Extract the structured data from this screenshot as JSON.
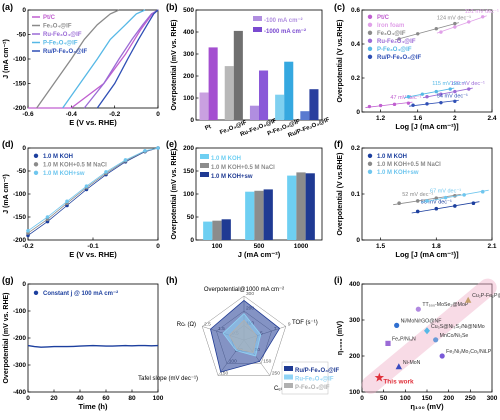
{
  "figure": {
    "panel_letters": [
      "(a)",
      "(b)",
      "(c)",
      "(d)",
      "(e)",
      "(f)",
      "(g)",
      "(h)",
      "(i)"
    ]
  },
  "chart_data": [
    {
      "id": "a",
      "type": "line",
      "xlabel": "E (V vs. RHE)",
      "ylabel": "J (mA cm⁻²)",
      "xlim": [
        -0.6,
        0.0
      ],
      "ylim": [
        -200,
        0
      ],
      "xticks": [
        -0.6,
        -0.4,
        -0.2,
        0.0
      ],
      "yticks": [
        -200,
        -150,
        -100,
        -50,
        0
      ],
      "legend": "top-left",
      "series": [
        {
          "name": "Pt/C",
          "color": "#c05fd0",
          "x": [
            -0.6,
            -0.4,
            -0.25,
            -0.15,
            -0.08,
            -0.03,
            0.0
          ],
          "y": [
            -200,
            -200,
            -150,
            -90,
            -40,
            -10,
            0
          ]
        },
        {
          "name": "Fe₃O₄@IF",
          "color": "#8a8a8a",
          "x": [
            -0.56,
            -0.48,
            -0.4,
            -0.34,
            -0.28,
            -0.22,
            -0.18
          ],
          "y": [
            -200,
            -150,
            -100,
            -60,
            -30,
            -8,
            0
          ]
        },
        {
          "name": "Ru-Fe₃O₄@IF",
          "color": "#9b6bd6",
          "x": [
            -0.34,
            -0.25,
            -0.18,
            -0.12,
            -0.07,
            -0.03,
            0.0
          ],
          "y": [
            -200,
            -150,
            -100,
            -60,
            -30,
            -8,
            0
          ]
        },
        {
          "name": "P-Fe₃O₄@IF",
          "color": "#56b8e6",
          "x": [
            -0.44,
            -0.36,
            -0.28,
            -0.22,
            -0.15,
            -0.1,
            -0.06
          ],
          "y": [
            -200,
            -150,
            -100,
            -60,
            -30,
            -8,
            0
          ]
        },
        {
          "name": "Ru/P-Fe₃O₄@IF",
          "color": "#2f4fb5",
          "x": [
            -0.28,
            -0.2,
            -0.14,
            -0.09,
            -0.05,
            -0.02,
            0.0
          ],
          "y": [
            -200,
            -150,
            -100,
            -60,
            -30,
            -8,
            0
          ]
        }
      ]
    },
    {
      "id": "b",
      "type": "bar",
      "ylabel": "Overpotential (mV vs. RHE)",
      "ylim": [
        0,
        500
      ],
      "yticks": [
        0,
        100,
        200,
        300,
        400,
        500
      ],
      "categories": [
        "Pt",
        "Fe₃O₄@IF",
        "Ru-Fe₃O₄@IF",
        "P-Fe₃O₄@IF",
        "Ru/P-Fe₃O₄@IF"
      ],
      "legend": "top-right",
      "series": [
        {
          "name": "-100 mA cm⁻²",
          "values": [
            125,
            245,
            65,
            115,
            40
          ]
        },
        {
          "name": "-1000 mA cm⁻²",
          "values": [
            330,
            405,
            225,
            265,
            140
          ]
        }
      ],
      "colors_100": [
        "#c9a0e0",
        "#b8b8b8",
        "#b08ee0",
        "#7fd0f0",
        "#5a7ad0"
      ],
      "colors_1000": [
        "#a44fd0",
        "#707070",
        "#8a58d8",
        "#35a8e0",
        "#2a3f9e"
      ]
    },
    {
      "id": "c",
      "type": "scatter",
      "xlabel": "Log [J (mA cm⁻²)]",
      "ylabel": "Overpotential (V vs.RHE)",
      "xlim": [
        1.0,
        2.4
      ],
      "ylim": [
        0.0,
        0.6
      ],
      "xticks": [
        1.2,
        1.6,
        2.0,
        2.4
      ],
      "yticks": [
        0.0,
        0.2,
        0.4,
        0.6
      ],
      "legend": "top-left",
      "series": [
        {
          "name": "Pt/C",
          "color": "#c05fd0",
          "x": [
            1.08,
            1.2,
            1.35,
            1.5
          ],
          "y": [
            0.032,
            0.038,
            0.045,
            0.052
          ],
          "annotation": "47 mV dec⁻¹"
        },
        {
          "name": "Iron foam",
          "color": "#e0a0e8",
          "x": [
            1.85,
            2.0,
            2.15,
            2.3
          ],
          "y": [
            0.47,
            0.5,
            0.53,
            0.56
          ],
          "annotation": "151 mV dec⁻¹"
        },
        {
          "name": "Fe₃O₄@IF",
          "color": "#8a8a8a",
          "x": [
            1.4,
            1.6,
            1.8,
            2.0
          ],
          "y": [
            0.43,
            0.46,
            0.49,
            0.52
          ],
          "annotation": "124 mV dec⁻¹"
        },
        {
          "name": "Ru-Fe₃O₄@IF",
          "color": "#9b6bd6",
          "x": [
            1.7,
            1.85,
            2.0,
            2.15
          ],
          "y": [
            0.09,
            0.105,
            0.12,
            0.135
          ],
          "annotation": "120 mV dec⁻¹"
        },
        {
          "name": "P-Fe₃O₄@IF",
          "color": "#56b8e6",
          "x": [
            1.5,
            1.65,
            1.8,
            1.95
          ],
          "y": [
            0.09,
            0.105,
            0.12,
            0.135
          ],
          "annotation": "115 mV dec⁻¹"
        },
        {
          "name": "Ru/P-Fe₃O₄@IF",
          "color": "#2f4fb5",
          "x": [
            1.55,
            1.7,
            1.85,
            2.0
          ],
          "y": [
            0.04,
            0.048,
            0.055,
            0.063
          ],
          "annotation": "54 mV dec⁻¹"
        }
      ]
    },
    {
      "id": "d",
      "type": "line",
      "xlabel": "E (V vs. RHE)",
      "ylabel": "J (mA cm⁻²)",
      "xlim": [
        -0.2,
        0.0
      ],
      "ylim": [
        -200,
        0
      ],
      "xticks": [
        -0.2,
        -0.1,
        0.0
      ],
      "yticks": [
        -200,
        -150,
        -100,
        -50,
        0
      ],
      "legend": "top-left",
      "series": [
        {
          "name": "1.0 M KOH",
          "color": "#1c3f9e",
          "x": [
            -0.2,
            -0.17,
            -0.14,
            -0.11,
            -0.08,
            -0.05,
            -0.02,
            0.0
          ],
          "y": [
            -190,
            -160,
            -125,
            -90,
            -58,
            -30,
            -8,
            0
          ]
        },
        {
          "name": "1.0 M KOH+0.5 M NaCl",
          "color": "#8a8a8a",
          "x": [
            -0.2,
            -0.17,
            -0.14,
            -0.11,
            -0.08,
            -0.05,
            -0.02,
            0.0
          ],
          "y": [
            -185,
            -155,
            -120,
            -86,
            -55,
            -28,
            -7,
            0
          ]
        },
        {
          "name": "1.0 M KOH+sw",
          "color": "#6fc6ee",
          "x": [
            -0.2,
            -0.17,
            -0.14,
            -0.11,
            -0.08,
            -0.05,
            -0.02,
            0.0
          ],
          "y": [
            -180,
            -150,
            -116,
            -83,
            -52,
            -26,
            -6,
            0
          ]
        }
      ]
    },
    {
      "id": "e",
      "type": "bar",
      "xlabel": "J (mA cm⁻²)",
      "ylabel": "Overpotential (mV vs. RHE)",
      "ylim": [
        0,
        200
      ],
      "yticks": [
        0,
        50,
        100,
        150,
        200
      ],
      "categories": [
        "100",
        "500",
        "1000"
      ],
      "legend": "top-left",
      "series": [
        {
          "name": "1.0 M KOH",
          "color": "#6ecff2",
          "values": [
            40,
            105,
            140
          ]
        },
        {
          "name": "1.0 M KOH+0.5 M NaCl",
          "color": "#8c8c8c",
          "values": [
            42,
            107,
            147
          ]
        },
        {
          "name": "1.0 M KOH+sw",
          "color": "#1f3a93",
          "values": [
            45,
            110,
            145
          ]
        }
      ]
    },
    {
      "id": "f",
      "type": "scatter",
      "xlabel": "Log [J (mA cm⁻²)]",
      "ylabel": "Overpotential (V vs.RHE)",
      "xlim": [
        1.4,
        2.1
      ],
      "ylim": [
        0.0,
        0.2
      ],
      "xticks": [
        1.5,
        1.8,
        2.1
      ],
      "yticks": [
        0.0,
        0.1,
        0.2
      ],
      "legend": "top-left",
      "series": [
        {
          "name": "1.0 M KOH",
          "color": "#1c3f9e",
          "x": [
            1.7,
            1.8,
            1.9,
            2.0
          ],
          "y": [
            0.062,
            0.068,
            0.074,
            0.08
          ],
          "annotation": "56 mV dec⁻¹"
        },
        {
          "name": "1.0 M KOH+0.5 M NaCl",
          "color": "#8a8a8a",
          "x": [
            1.6,
            1.7,
            1.8,
            1.9
          ],
          "y": [
            0.08,
            0.085,
            0.091,
            0.096
          ],
          "annotation": "52 mV dec⁻¹"
        },
        {
          "name": "1.0 M KOH+sw",
          "color": "#6fc6ee",
          "x": [
            1.75,
            1.85,
            1.95,
            2.05
          ],
          "y": [
            0.085,
            0.092,
            0.098,
            0.105
          ],
          "annotation": "67 mV dec⁻¹"
        }
      ]
    },
    {
      "id": "g",
      "type": "line",
      "xlabel": "Time (h)",
      "ylabel": "Overpotential (mV vs. RHE)",
      "xlim": [
        0,
        100
      ],
      "ylim": [
        -400,
        0
      ],
      "xticks": [
        0,
        20,
        40,
        60,
        80,
        100
      ],
      "yticks": [
        -400,
        -300,
        -200,
        -100,
        0
      ],
      "legend": "top-left",
      "series": [
        {
          "name": "Constant j @ 100 mA cm⁻²",
          "color": "#1c3f9e",
          "x": [
            0,
            5,
            10,
            15,
            20,
            25,
            30,
            35,
            40,
            45,
            50,
            55,
            60,
            65,
            70,
            75,
            80,
            85,
            90,
            95,
            100
          ],
          "y": [
            -228,
            -232,
            -234,
            -233,
            -232,
            -232,
            -232,
            -231,
            -230,
            -229,
            -228,
            -229,
            -230,
            -230,
            -229,
            -228,
            -229,
            -228,
            -228,
            -229,
            -228
          ]
        }
      ]
    },
    {
      "id": "h",
      "type": "radar",
      "axes": [
        {
          "label": "Overpotential@1000 mA cm⁻²",
          "ticks": [
            "100",
            "200",
            "300"
          ]
        },
        {
          "label": "TOF (s⁻¹)",
          "ticks": [
            "5",
            "7",
            "9"
          ]
        },
        {
          "label": "Cₑₗ (mF cm⁻²)",
          "ticks": [
            "50",
            "150",
            "250"
          ]
        },
        {
          "label": "Tafel slope (mV dec⁻¹)",
          "ticks": [
            "50",
            "100",
            "150"
          ]
        },
        {
          "label": "Rᴄₜ (Ω)",
          "ticks": [
            "0.5",
            "1.5",
            "2.5"
          ]
        }
      ],
      "legend": "bottom-right",
      "series": [
        {
          "name": "Ru/P-Fe₃O₄@IF",
          "color": "#1f3a93",
          "values": [
            0.9,
            0.85,
            0.6,
            0.9,
            0.8
          ]
        },
        {
          "name": "Ru-Fe₃O₄@IF",
          "color": "#8fd3f5",
          "values": [
            0.6,
            0.4,
            0.45,
            0.3,
            0.5
          ]
        },
        {
          "name": "P-Fe₃O₄@IF",
          "color": "#b0b0b0",
          "values": [
            0.45,
            0.3,
            0.35,
            0.25,
            0.35
          ]
        }
      ]
    },
    {
      "id": "i",
      "type": "scatter",
      "xlabel": "η₁₀₀ (mV)",
      "ylabel": "η₁₀₀₀ (mV)",
      "xlim": [
        0,
        300
      ],
      "ylim": [
        100,
        400
      ],
      "xticks": [
        0,
        50,
        100,
        150,
        200,
        250,
        300
      ],
      "yticks": [
        100,
        200,
        300,
        400
      ],
      "points": [
        {
          "label": "This work",
          "x": 40,
          "y": 140,
          "color": "#e0303a",
          "marker": "star"
        },
        {
          "label": "Ni-MoN",
          "x": 85,
          "y": 170,
          "color": "#3a4ac0",
          "marker": "triangle"
        },
        {
          "label": "Fe₂P/Ni₃N",
          "x": 60,
          "y": 235,
          "color": "#9b6bd6",
          "marker": "square"
        },
        {
          "label": "Ni/MoN/rGO@NF",
          "x": 80,
          "y": 285,
          "color": "#2f6fd0",
          "marker": "circle"
        },
        {
          "label": "Cu₃S@Ni₃S₂/Ni@NiMo",
          "x": 150,
          "y": 270,
          "color": "#56b8e6",
          "marker": "diamond"
        },
        {
          "label": "MnCo/Ni₃Se",
          "x": 170,
          "y": 245,
          "color": "#6a9ad8",
          "marker": "circle"
        },
        {
          "label": "Fe₂Ni₃Mo₁Co₁/NiLP",
          "x": 185,
          "y": 200,
          "color": "#7a5ad8",
          "marker": "circle"
        },
        {
          "label": "TT₅₀₀-MoSe₂@MoP",
          "x": 130,
          "y": 330,
          "color": "#b088e0",
          "marker": "circle"
        },
        {
          "label": "Cu₂P-Fe₂P@CC",
          "x": 245,
          "y": 355,
          "color": "#c4a06a",
          "marker": "triangle"
        }
      ],
      "trend": {
        "from": [
          20,
          120
        ],
        "to": [
          290,
          390
        ]
      }
    }
  ]
}
